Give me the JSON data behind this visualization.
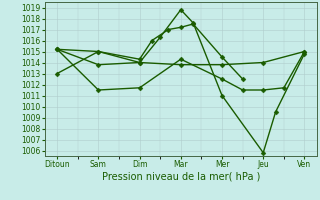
{
  "title": "Pression niveau de la mer( hPa )",
  "x_labels": [
    "Ditoun",
    "Sam",
    "Dim",
    "Mar",
    "Mer",
    "Jeu",
    "Ven"
  ],
  "x_positions": [
    0,
    1,
    2,
    3,
    4,
    5,
    6
  ],
  "ylim": [
    1005.5,
    1019.5
  ],
  "yticks": [
    1006,
    1007,
    1008,
    1009,
    1010,
    1011,
    1012,
    1013,
    1014,
    1015,
    1016,
    1017,
    1018,
    1019
  ],
  "bg_color": "#c8ece8",
  "grid_color": "#b0cccc",
  "line_color": "#1a5c00",
  "series": [
    {
      "x": [
        0,
        1,
        2,
        2.5,
        3,
        3.3,
        4,
        5,
        5.3,
        6
      ],
      "y": [
        1013.0,
        1015.0,
        1014.0,
        1016.3,
        1018.8,
        1017.6,
        1011.0,
        1005.8,
        1009.5,
        1014.8
      ]
    },
    {
      "x": [
        0,
        1,
        2,
        2.3,
        2.7,
        3,
        3.3,
        4,
        4.5
      ],
      "y": [
        1015.2,
        1015.0,
        1014.3,
        1016.0,
        1017.0,
        1017.2,
        1017.5,
        1014.5,
        1012.5
      ]
    },
    {
      "x": [
        0,
        1,
        2,
        3,
        4,
        5,
        6
      ],
      "y": [
        1015.2,
        1013.8,
        1014.0,
        1013.8,
        1013.8,
        1014.0,
        1015.0
      ]
    },
    {
      "x": [
        0,
        1,
        2,
        3,
        4,
        4.5,
        5,
        5.5,
        6
      ],
      "y": [
        1015.2,
        1011.5,
        1011.7,
        1014.3,
        1012.5,
        1011.5,
        1011.5,
        1011.7,
        1015.0
      ]
    }
  ],
  "marker_size": 2.5,
  "line_width": 1.0,
  "tick_fontsize": 5.5,
  "label_fontsize": 7.0
}
